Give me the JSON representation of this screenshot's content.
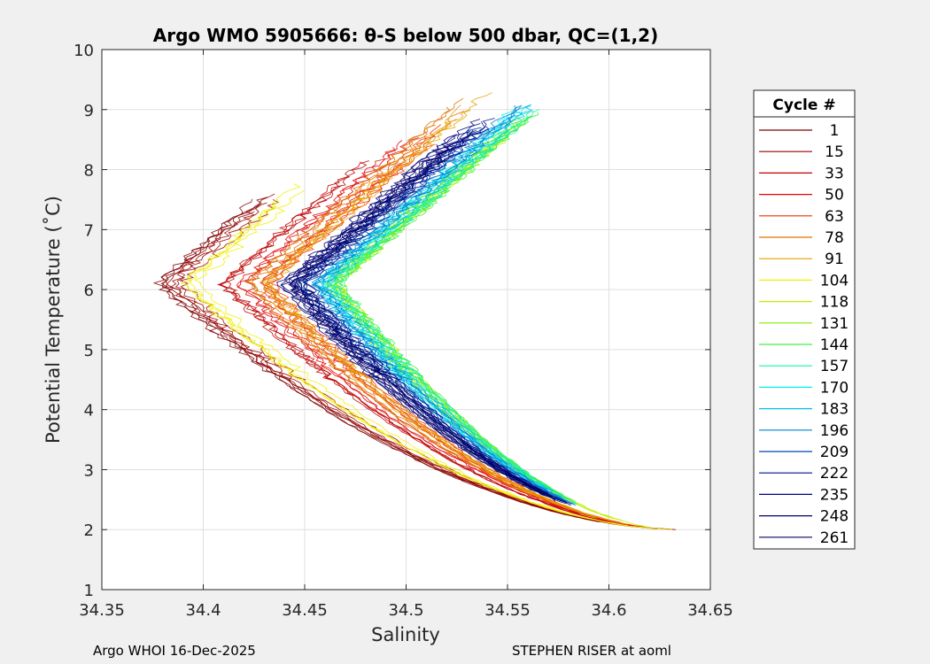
{
  "chart_data": {
    "type": "line",
    "title": "Argo WMO 5905666: θ-S below 500 dbar,  QC=(1,2)",
    "xlabel": "Salinity",
    "ylabel": "Potential Temperature (˚C)",
    "xlim": [
      34.35,
      34.65
    ],
    "ylim": [
      1,
      10
    ],
    "xticks": [
      34.35,
      34.4,
      34.45,
      34.5,
      34.55,
      34.6,
      34.65
    ],
    "xtick_labels": [
      "34.35",
      "34.4",
      "34.45",
      "34.5",
      "34.55",
      "34.6",
      "34.65"
    ],
    "yticks": [
      1,
      2,
      3,
      4,
      5,
      6,
      7,
      8,
      9,
      10
    ],
    "ytick_labels": [
      "1",
      "2",
      "3",
      "4",
      "5",
      "6",
      "7",
      "8",
      "9",
      "10"
    ],
    "grid": true,
    "legend": {
      "title": "Cycle #",
      "position": "right",
      "entries": [
        {
          "label": "1",
          "color": "#800000"
        },
        {
          "label": "15",
          "color": "#9a0000"
        },
        {
          "label": "33",
          "color": "#c00000"
        },
        {
          "label": "50",
          "color": "#e00000"
        },
        {
          "label": "63",
          "color": "#f03000"
        },
        {
          "label": "78",
          "color": "#e07000"
        },
        {
          "label": "91",
          "color": "#e8a000"
        },
        {
          "label": "104",
          "color": "#f0f000"
        },
        {
          "label": "118",
          "color": "#c0f000"
        },
        {
          "label": "131",
          "color": "#80f000"
        },
        {
          "label": "144",
          "color": "#40f040"
        },
        {
          "label": "157",
          "color": "#10f0b0"
        },
        {
          "label": "170",
          "color": "#00f0f0"
        },
        {
          "label": "183",
          "color": "#00c0f0"
        },
        {
          "label": "196",
          "color": "#0080d0"
        },
        {
          "label": "209",
          "color": "#0040b0"
        },
        {
          "label": "222",
          "color": "#001090"
        },
        {
          "label": "235",
          "color": "#000080"
        },
        {
          "label": "248",
          "color": "#000070"
        },
        {
          "label": "261",
          "color": "#000060"
        }
      ]
    },
    "series": [
      {
        "name": "1",
        "s0": 34.381,
        "shift": -0.0001,
        "tmax": 7.6
      },
      {
        "name": "15",
        "s0": 34.385,
        "shift": 0.0,
        "tmax": 7.8
      },
      {
        "name": "33",
        "s0": 34.41,
        "shift": 0.0005,
        "tmax": 8.2
      },
      {
        "name": "50",
        "s0": 34.422,
        "shift": 0.0008,
        "tmax": 8.6
      },
      {
        "name": "63",
        "s0": 34.428,
        "shift": 0.001,
        "tmax": 8.9
      },
      {
        "name": "78",
        "s0": 34.425,
        "shift": 0.0012,
        "tmax": 9.2
      },
      {
        "name": "91",
        "s0": 34.43,
        "shift": 0.001,
        "tmax": 9.3
      },
      {
        "name": "104",
        "s0": 34.392,
        "shift": 0.0015,
        "tmax": 7.9
      },
      {
        "name": "118",
        "s0": 34.46,
        "shift": 0.003,
        "tmax": 9.1
      },
      {
        "name": "131",
        "s0": 34.463,
        "shift": 0.0028,
        "tmax": 8.9
      },
      {
        "name": "144",
        "s0": 34.46,
        "shift": 0.003,
        "tmax": 9.0
      },
      {
        "name": "157",
        "s0": 34.458,
        "shift": 0.003,
        "tmax": 9.1
      },
      {
        "name": "170",
        "s0": 34.456,
        "shift": 0.0032,
        "tmax": 9.2
      },
      {
        "name": "183",
        "s0": 34.454,
        "shift": 0.003,
        "tmax": 9.3
      },
      {
        "name": "196",
        "s0": 34.452,
        "shift": 0.0028,
        "tmax": 9.2
      },
      {
        "name": "209",
        "s0": 34.446,
        "shift": 0.0025,
        "tmax": 9.1
      },
      {
        "name": "222",
        "s0": 34.444,
        "shift": 0.0022,
        "tmax": 9.0
      },
      {
        "name": "235",
        "s0": 34.442,
        "shift": 0.002,
        "tmax": 8.9
      },
      {
        "name": "248",
        "s0": 34.44,
        "shift": 0.0018,
        "tmax": 8.8
      },
      {
        "name": "261",
        "s0": 34.445,
        "shift": 0.002,
        "tmax": 8.7
      }
    ]
  },
  "footer": {
    "left": "Argo WHOI 16-Dec-2025",
    "right": "STEPHEN RISER at aoml"
  }
}
